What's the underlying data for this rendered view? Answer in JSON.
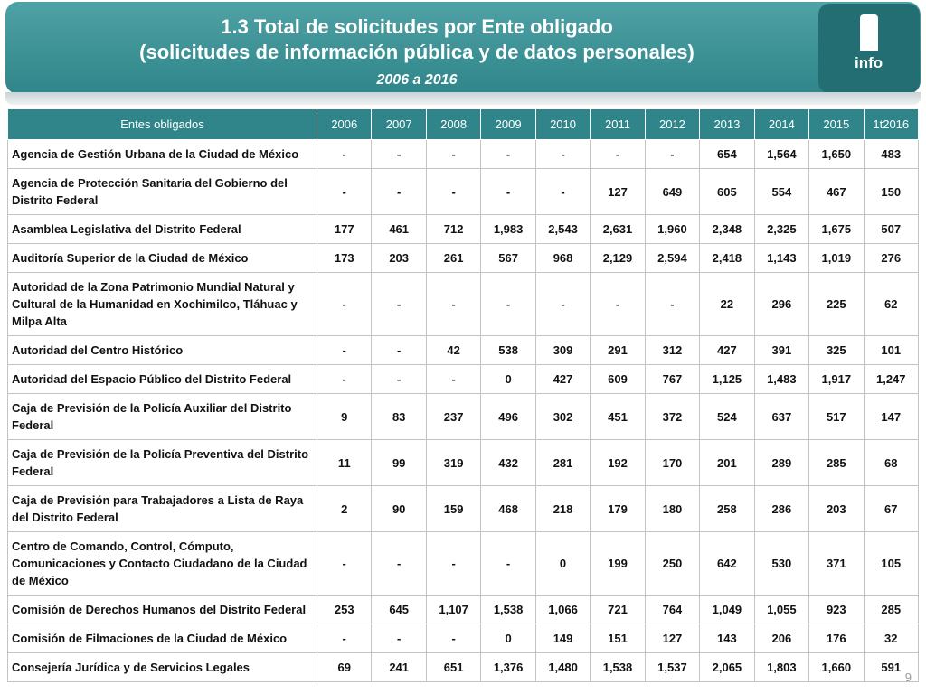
{
  "header": {
    "title_lines": [
      "1.3 Total de solicitudes por Ente obligado",
      "(solicitudes de información pública y de datos personales)"
    ],
    "subtitle": "2006 a 2016",
    "logo": "info"
  },
  "table": {
    "columns": [
      "Entes obligados",
      "2006",
      "2007",
      "2008",
      "2009",
      "2010",
      "2011",
      "2012",
      "2013",
      "2014",
      "2015",
      "1t2016"
    ],
    "rows": [
      {
        "name": "Agencia de Gestión Urbana de la Ciudad de México",
        "values": [
          "-",
          "-",
          "-",
          "-",
          "-",
          "-",
          "-",
          "654",
          "1,564",
          "1,650",
          "483"
        ]
      },
      {
        "name": "Agencia de Protección Sanitaria del Gobierno del Distrito Federal",
        "values": [
          "-",
          "-",
          "-",
          "-",
          "-",
          "127",
          "649",
          "605",
          "554",
          "467",
          "150"
        ]
      },
      {
        "name": "Asamblea Legislativa del Distrito Federal",
        "values": [
          "177",
          "461",
          "712",
          "1,983",
          "2,543",
          "2,631",
          "1,960",
          "2,348",
          "2,325",
          "1,675",
          "507"
        ]
      },
      {
        "name": "Auditoría Superior de la Ciudad de México",
        "values": [
          "173",
          "203",
          "261",
          "567",
          "968",
          "2,129",
          "2,594",
          "2,418",
          "1,143",
          "1,019",
          "276"
        ]
      },
      {
        "name": "Autoridad de la Zona Patrimonio Mundial Natural y Cultural de la Humanidad en Xochimilco, Tláhuac y Milpa Alta",
        "values": [
          "-",
          "-",
          "-",
          "-",
          "-",
          "-",
          "-",
          "22",
          "296",
          "225",
          "62"
        ]
      },
      {
        "name": "Autoridad del Centro Histórico",
        "values": [
          "-",
          "-",
          "42",
          "538",
          "309",
          "291",
          "312",
          "427",
          "391",
          "325",
          "101"
        ]
      },
      {
        "name": "Autoridad del Espacio Público del Distrito Federal",
        "values": [
          "-",
          "-",
          "-",
          "0",
          "427",
          "609",
          "767",
          "1,125",
          "1,483",
          "1,917",
          "1,247"
        ]
      },
      {
        "name": "Caja de Previsión de la Policía Auxiliar del Distrito Federal",
        "values": [
          "9",
          "83",
          "237",
          "496",
          "302",
          "451",
          "372",
          "524",
          "637",
          "517",
          "147"
        ]
      },
      {
        "name": "Caja de Previsión de la Policía Preventiva del Distrito Federal",
        "values": [
          "11",
          "99",
          "319",
          "432",
          "281",
          "192",
          "170",
          "201",
          "289",
          "285",
          "68"
        ]
      },
      {
        "name": "Caja de Previsión para Trabajadores a Lista de Raya del Distrito Federal",
        "values": [
          "2",
          "90",
          "159",
          "468",
          "218",
          "179",
          "180",
          "258",
          "286",
          "203",
          "67"
        ]
      },
      {
        "name": "Centro de Comando, Control, Cómputo, Comunicaciones y Contacto Ciudadano de la Ciudad de México",
        "values": [
          "-",
          "-",
          "-",
          "-",
          "0",
          "199",
          "250",
          "642",
          "530",
          "371",
          "105"
        ]
      },
      {
        "name": "Comisión de Derechos Humanos del Distrito Federal",
        "values": [
          "253",
          "645",
          "1,107",
          "1,538",
          "1,066",
          "721",
          "764",
          "1,049",
          "1,055",
          "923",
          "285"
        ]
      },
      {
        "name": "Comisión de Filmaciones de la Ciudad de México",
        "values": [
          "-",
          "-",
          "-",
          "0",
          "149",
          "151",
          "127",
          "143",
          "206",
          "176",
          "32"
        ]
      },
      {
        "name": "Consejería Jurídica y de Servicios Legales",
        "values": [
          "69",
          "241",
          "651",
          "1,376",
          "1,480",
          "1,538",
          "1,537",
          "2,065",
          "1,803",
          "1,660",
          "591"
        ]
      }
    ]
  },
  "page_number": "9"
}
